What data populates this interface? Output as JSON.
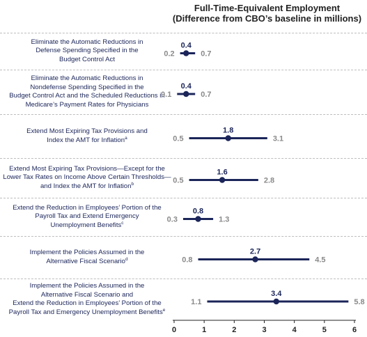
{
  "chart_data": {
    "type": "range",
    "title": "Full-Time-Equivalent Employment",
    "subtitle": "(Difference from CBO’s baseline in millions)",
    "xlim": [
      0,
      6
    ],
    "xticks": [
      "0",
      "1",
      "2",
      "3",
      "4",
      "5",
      "6"
    ],
    "grid": false,
    "series_color": "#1b2559",
    "categories": [
      {
        "label": "Eliminate the Automatic Reductions in\nDefense Spending Specified in the\nBudget Control Act",
        "note": "",
        "low": 0.2,
        "mid": 0.4,
        "high": 0.7,
        "low_label": "0.2",
        "mid_label": "0.4",
        "high_label": "0.7"
      },
      {
        "label": "Eliminate the Automatic Reductions in\nNondefense Spending Specified in the\nBudget Control Act and the Scheduled Reductions in\nMedicare’s Payment Rates for Physicians",
        "note": "",
        "low": 0.1,
        "mid": 0.4,
        "high": 0.7,
        "low_label": "0.1",
        "mid_label": "0.4",
        "high_label": "0.7"
      },
      {
        "label": "Extend Most Expiring Tax Provisions and\nIndex the AMT for Inflation",
        "note": "a",
        "low": 0.5,
        "mid": 1.8,
        "high": 3.1,
        "low_label": "0.5",
        "mid_label": "1.8",
        "high_label": "3.1"
      },
      {
        "label": "Extend Most Expiring Tax Provisions—Except for the\nLower Tax Rates on Income Above Certain Thresholds—\nand Index the AMT for Inflation",
        "note": "b",
        "low": 0.5,
        "mid": 1.6,
        "high": 2.8,
        "low_label": "0.5",
        "mid_label": "1.6",
        "high_label": "2.8"
      },
      {
        "label": "Extend the Reduction in Employees’ Portion of the\nPayroll Tax and Extend Emergency\nUnemployment Benefits",
        "note": "c",
        "low": 0.3,
        "mid": 0.8,
        "high": 1.3,
        "low_label": "0.3",
        "mid_label": "0.8",
        "high_label": "1.3"
      },
      {
        "label": "Implement the Policies Assumed in the\nAlternative Fiscal Scenario",
        "note": "d",
        "low": 0.8,
        "mid": 2.7,
        "high": 4.5,
        "low_label": "0.8",
        "mid_label": "2.7",
        "high_label": "4.5"
      },
      {
        "label": "Implement the Policies Assumed in the\nAlternative Fiscal Scenario and\nExtend the Reduction in Employees’ Portion of the\nPayroll Tax and Emergency Unemployment Benefits",
        "note": "e",
        "low": 1.1,
        "mid": 3.4,
        "high": 5.8,
        "low_label": "1.1",
        "mid_label": "3.4",
        "high_label": "5.8"
      }
    ]
  }
}
